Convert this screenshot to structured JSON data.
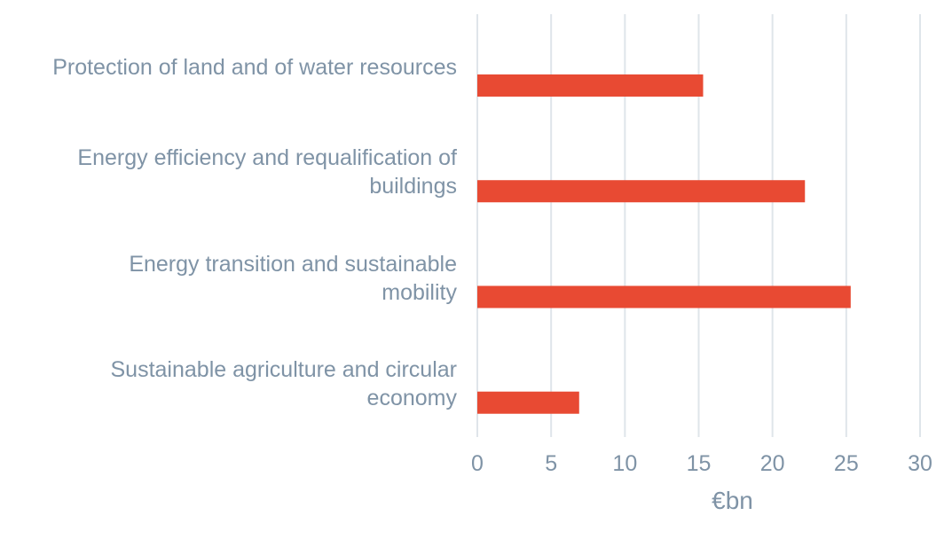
{
  "chart_data": {
    "type": "bar",
    "orientation": "horizontal",
    "categories": [
      "Protection of land and of water resources",
      "Energy efficiency and requalification of\nbuildings",
      "Energy transition and sustainable\nmobility",
      "Sustainable agriculture and circular\neconomy"
    ],
    "values": [
      15.3,
      22.2,
      25.3,
      6.9
    ],
    "xlabel": "€bn",
    "xlim": [
      0,
      30
    ],
    "xticks": [
      "0",
      "5",
      "10",
      "15",
      "20",
      "25",
      "30"
    ],
    "grid": true,
    "colors": {
      "bar": "#e84a33",
      "grid": "#dfe5ea",
      "text": "#7f93a6"
    }
  }
}
